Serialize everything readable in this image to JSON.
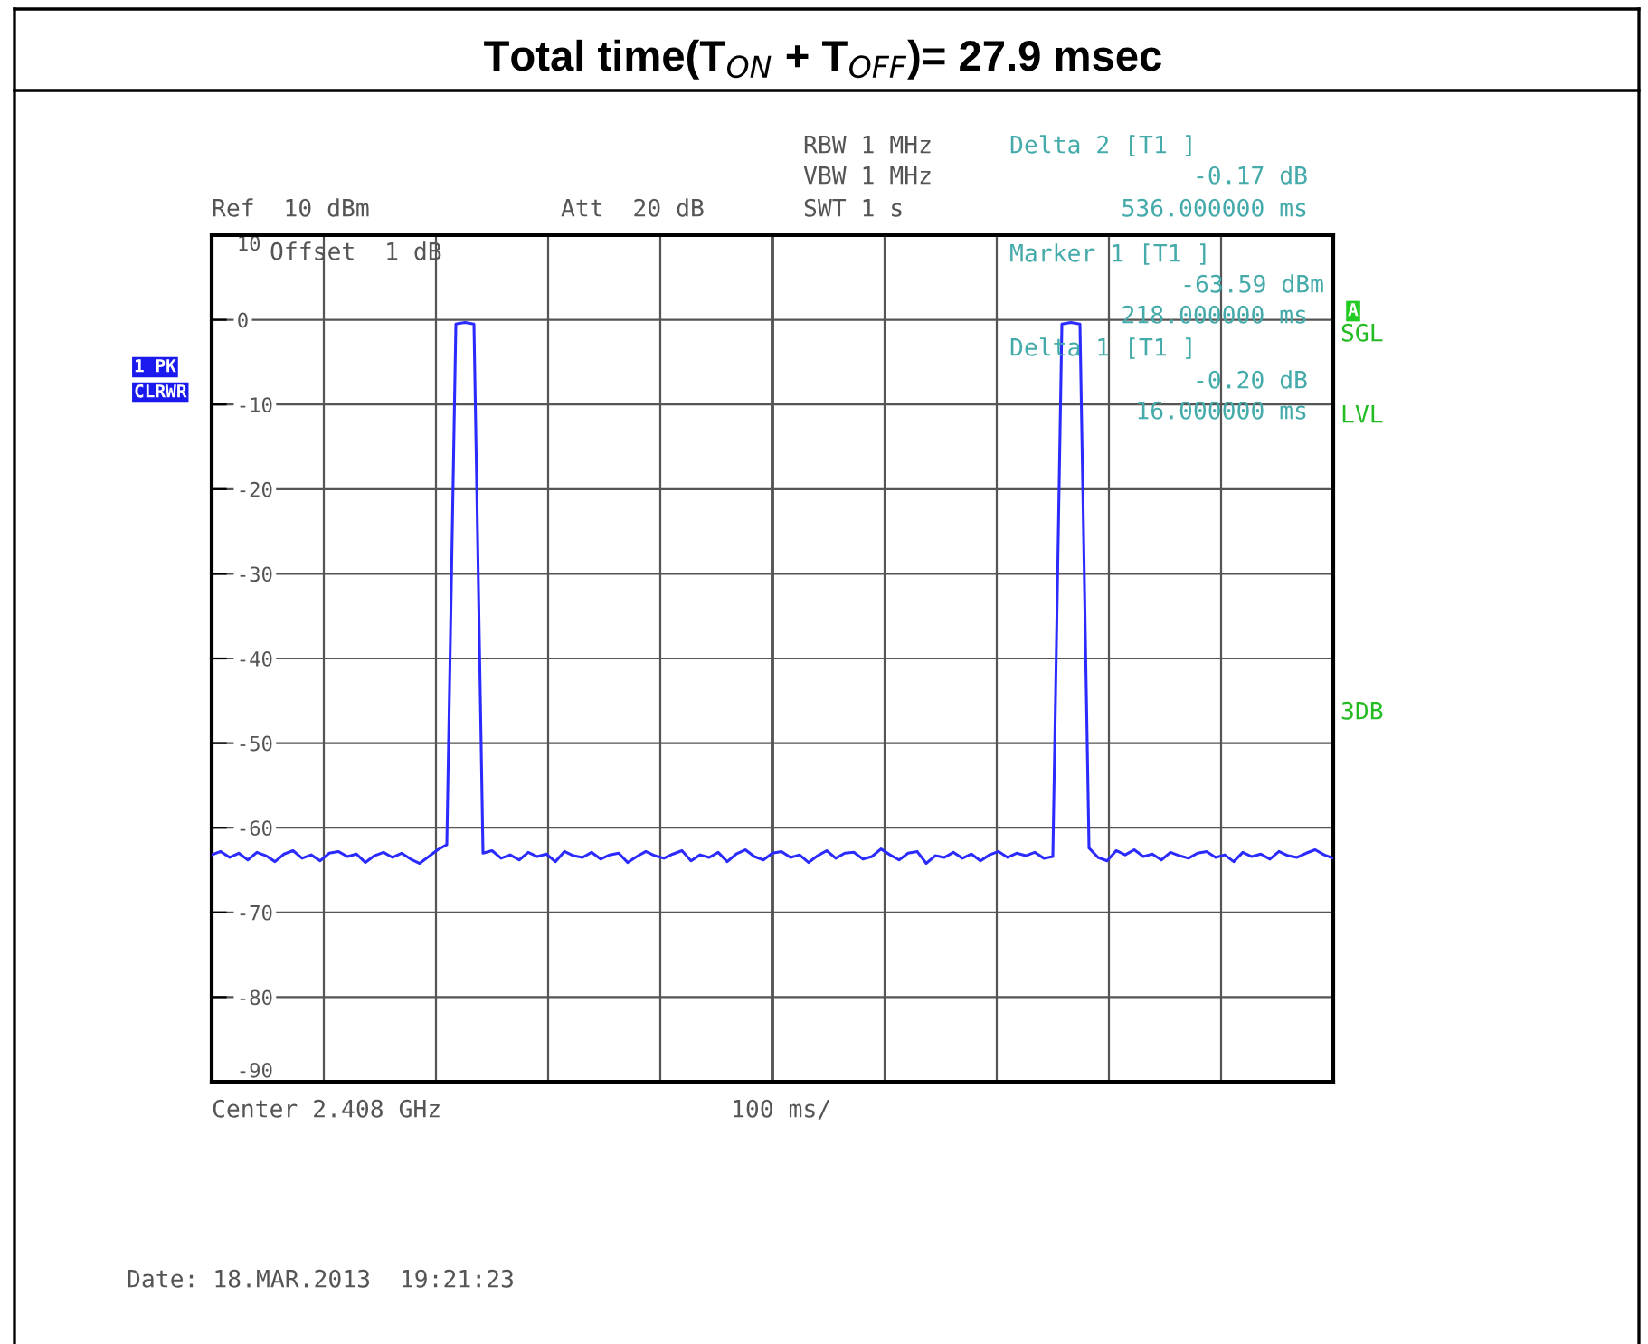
{
  "chart_data": {
    "type": "line",
    "title": "Total time(T$_{ON}$ + T$_{OFF}$)= 27.9 msec",
    "categories": [
      null,
      null,
      null,
      null,
      null,
      null,
      null,
      null,
      null,
      null,
      null,
      null,
      null,
      null,
      null,
      null,
      null,
      null,
      null,
      null,
      null,
      null,
      null,
      null,
      null,
      null,
      null,
      null,
      null,
      null,
      null,
      null,
      null,
      null,
      null,
      null,
      null,
      null,
      null,
      null,
      null,
      null,
      null,
      null,
      null,
      null,
      null,
      null,
      null,
      null,
      null,
      null,
      null,
      null,
      null,
      null,
      null,
      null,
      null,
      null,
      null,
      null,
      null,
      null,
      null,
      null,
      null,
      null,
      null,
      null,
      null,
      null,
      null,
      null,
      null,
      null,
      null,
      null,
      null,
      null,
      null,
      null,
      null,
      null,
      null,
      null,
      null,
      null,
      null,
      null,
      null,
      null,
      null,
      null,
      null,
      null,
      null,
      null,
      null,
      null,
      null,
      null,
      null,
      null,
      null,
      null,
      null,
      null,
      null,
      null,
      null,
      null,
      null,
      null,
      null,
      null,
      null,
      null,
      null,
      null,
      null,
      null,
      null,
      null,
      null
    ],
    "series": [
      {
        "color": "#2b2bff",
        "values": [
          -63.2,
          -62.8,
          -63.5,
          -63.0,
          -63.8,
          -62.9,
          -63.3,
          -64.0,
          -63.1,
          -62.7,
          -63.6,
          -63.2,
          -63.9,
          -63.0,
          -62.8,
          -63.4,
          -63.1,
          -64.1,
          -63.3,
          -62.9,
          -63.5,
          -63.0,
          -63.7,
          -64.2,
          -63.4,
          -62.6,
          -62.0,
          -0.5,
          -0.3,
          -0.5,
          -63.0,
          -62.7,
          -63.6,
          -63.2,
          -63.8,
          -62.9,
          -63.4,
          -63.1,
          -64.0,
          -62.8,
          -63.3,
          -63.5,
          -62.9,
          -63.7,
          -63.2,
          -63.0,
          -64.1,
          -63.4,
          -62.8,
          -63.3,
          -63.6,
          -63.1,
          -62.7,
          -63.9,
          -63.2,
          -63.5,
          -62.9,
          -64.0,
          -63.1,
          -62.6,
          -63.4,
          -63.8,
          -63.0,
          -62.8,
          -63.5,
          -63.2,
          -64.1,
          -63.3,
          -62.7,
          -63.6,
          -63.0,
          -62.9,
          -63.7,
          -63.4,
          -62.5,
          -63.2,
          -63.8,
          -63.0,
          -62.8,
          -64.2,
          -63.3,
          -63.5,
          -62.9,
          -63.6,
          -63.1,
          -63.9,
          -63.2,
          -62.8,
          -63.5,
          -63.0,
          -63.3,
          -62.9,
          -63.6,
          -63.4,
          -0.5,
          -0.3,
          -0.5,
          -62.4,
          -63.5,
          -63.9,
          -62.7,
          -63.2,
          -62.6,
          -63.4,
          -63.1,
          -63.8,
          -62.9,
          -63.3,
          -63.6,
          -63.0,
          -62.8,
          -63.5,
          -63.2,
          -64.0,
          -62.9,
          -63.4,
          -63.1,
          -63.7,
          -62.8,
          -63.3,
          -63.5,
          -63.0,
          -62.6,
          -63.2,
          -63.6
        ]
      }
    ],
    "ylim": [
      -90,
      10
    ],
    "yticks": [
      10,
      0,
      -10,
      -20,
      -30,
      -40,
      -50,
      -60,
      -70,
      -80,
      -90
    ],
    "grid": true,
    "marker": "none",
    "line_style": "solid",
    "annotations": [
      "Ref  10 dBm",
      "Att  20 dB",
      "RBW 1 MHz",
      "VBW 1 MHz",
      "SWT 1 s",
      "Offset  1 dB",
      "Delta 2 [T1 ]",
      "-0.17 dB",
      "536.000000 ms",
      "Marker 1 [T1 ]",
      "-63.59 dBm",
      "218.000000 ms",
      "Delta 1 [T1 ]",
      "-0.20 dB",
      "16.000000 ms",
      "1 PK",
      "CLRWR",
      "A",
      "SGL",
      "LVL",
      "3DB",
      "Center 2.408 GHz",
      "100 ms/",
      "Date: 18.MAR.2013  19:21:23"
    ]
  }
}
